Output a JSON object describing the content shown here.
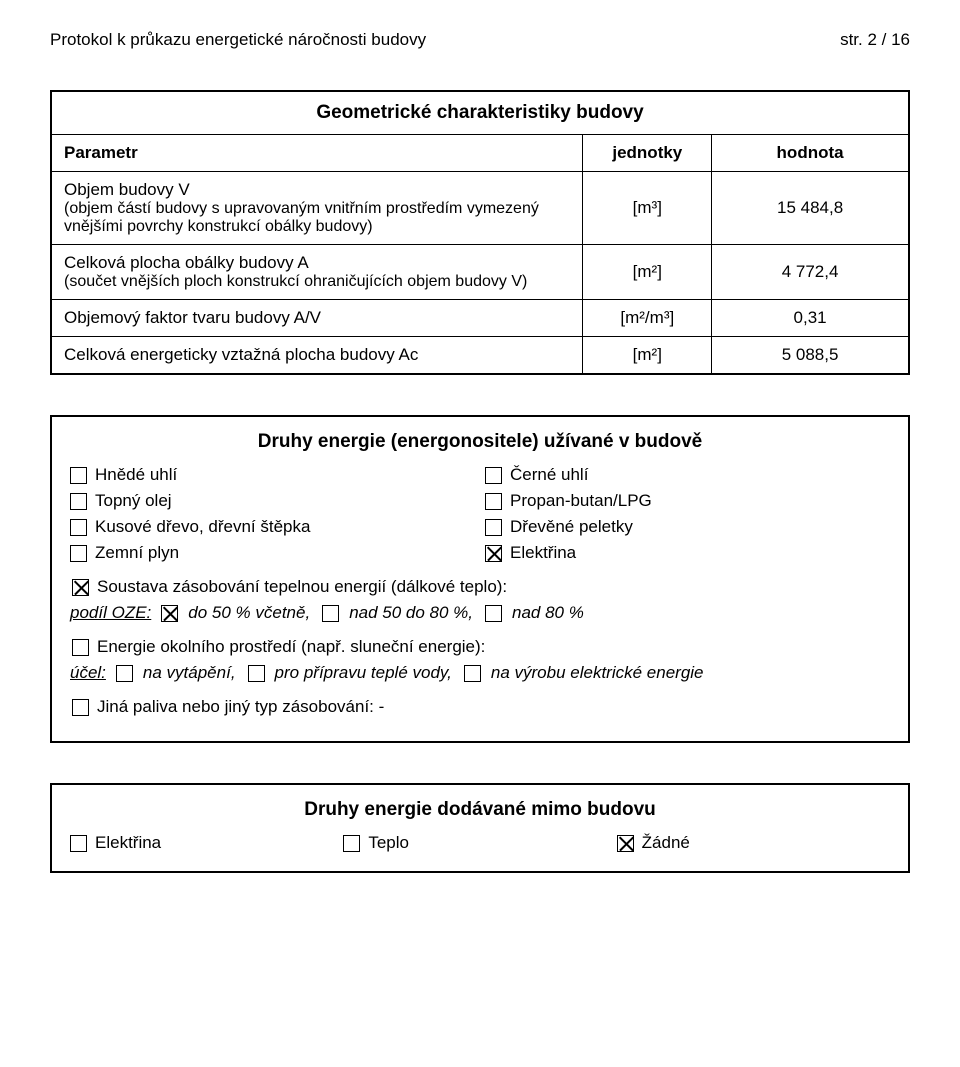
{
  "page": {
    "header_left": "Protokol k průkazu energetické náročnosti budovy",
    "header_right": "str. 2 / 16"
  },
  "geom_table": {
    "title": "Geometrické charakteristiky budovy",
    "head": {
      "param": "Parametr",
      "unit": "jednotky",
      "value": "hodnota"
    },
    "rows": [
      {
        "label": "Objem budovy V",
        "sublabel": "(objem částí budovy s upravovaným vnitřním prostředím vymezený vnějšími povrchy konstrukcí obálky budovy)",
        "unit": "[m³]",
        "value": "15 484,8"
      },
      {
        "label": "Celková plocha obálky budovy A",
        "sublabel": "(součet vnějších ploch konstrukcí ohraničujících objem budovy V)",
        "unit": "[m²]",
        "value": "4 772,4"
      },
      {
        "label": "Objemový faktor tvaru budovy A/V",
        "sublabel": "",
        "unit": "[m²/m³]",
        "value": "0,31"
      },
      {
        "label": "Celková energeticky vztažná plocha budovy Ac",
        "sublabel": "",
        "unit": "[m²]",
        "value": "5 088,5"
      }
    ],
    "col_widths": {
      "param_pct": 62,
      "unit_pct": 15,
      "value_pct": 23
    },
    "border_color": "#000000",
    "font_size_body": 17,
    "font_size_title": 19
  },
  "energy_used": {
    "title": "Druhy energie (energonositele) užívané v budově",
    "pairs": [
      {
        "left": {
          "label": "Hnědé uhlí",
          "checked": false
        },
        "right": {
          "label": "Černé uhlí",
          "checked": false
        }
      },
      {
        "left": {
          "label": "Topný olej",
          "checked": false
        },
        "right": {
          "label": "Propan-butan/LPG",
          "checked": false
        }
      },
      {
        "left": {
          "label": "Kusové dřevo, dřevní štěpka",
          "checked": false
        },
        "right": {
          "label": "Dřevěné peletky",
          "checked": false
        }
      },
      {
        "left": {
          "label": "Zemní plyn",
          "checked": false
        },
        "right": {
          "label": "Elektřina",
          "checked": true
        }
      }
    ],
    "district": {
      "lead_checked": true,
      "lead_label": "Soustava zásobování tepelnou energií (dálkové teplo):",
      "share_prefix": "podíl OZE:",
      "opts": [
        {
          "label": "do 50 % včetně,",
          "checked": true
        },
        {
          "label": "nad 50 do 80 %,",
          "checked": false
        },
        {
          "label": "nad 80 %",
          "checked": false
        }
      ]
    },
    "ambient": {
      "lead_checked": false,
      "lead_label": "Energie okolního prostředí  (např. sluneční energie):",
      "purpose_prefix": "účel:",
      "opts": [
        {
          "label": "na vytápění,",
          "checked": false
        },
        {
          "label": "pro přípravu teplé vody,",
          "checked": false
        },
        {
          "label": "na výrobu elektrické energie",
          "checked": false
        }
      ]
    },
    "other": {
      "checked": false,
      "label": "Jiná paliva nebo jiný typ zásobování: -"
    }
  },
  "energy_out": {
    "title": "Druhy energie dodávané mimo budovu",
    "items": [
      {
        "label": "Elektřina",
        "checked": false
      },
      {
        "label": "Teplo",
        "checked": false
      },
      {
        "label": "Žádné",
        "checked": true
      }
    ]
  }
}
